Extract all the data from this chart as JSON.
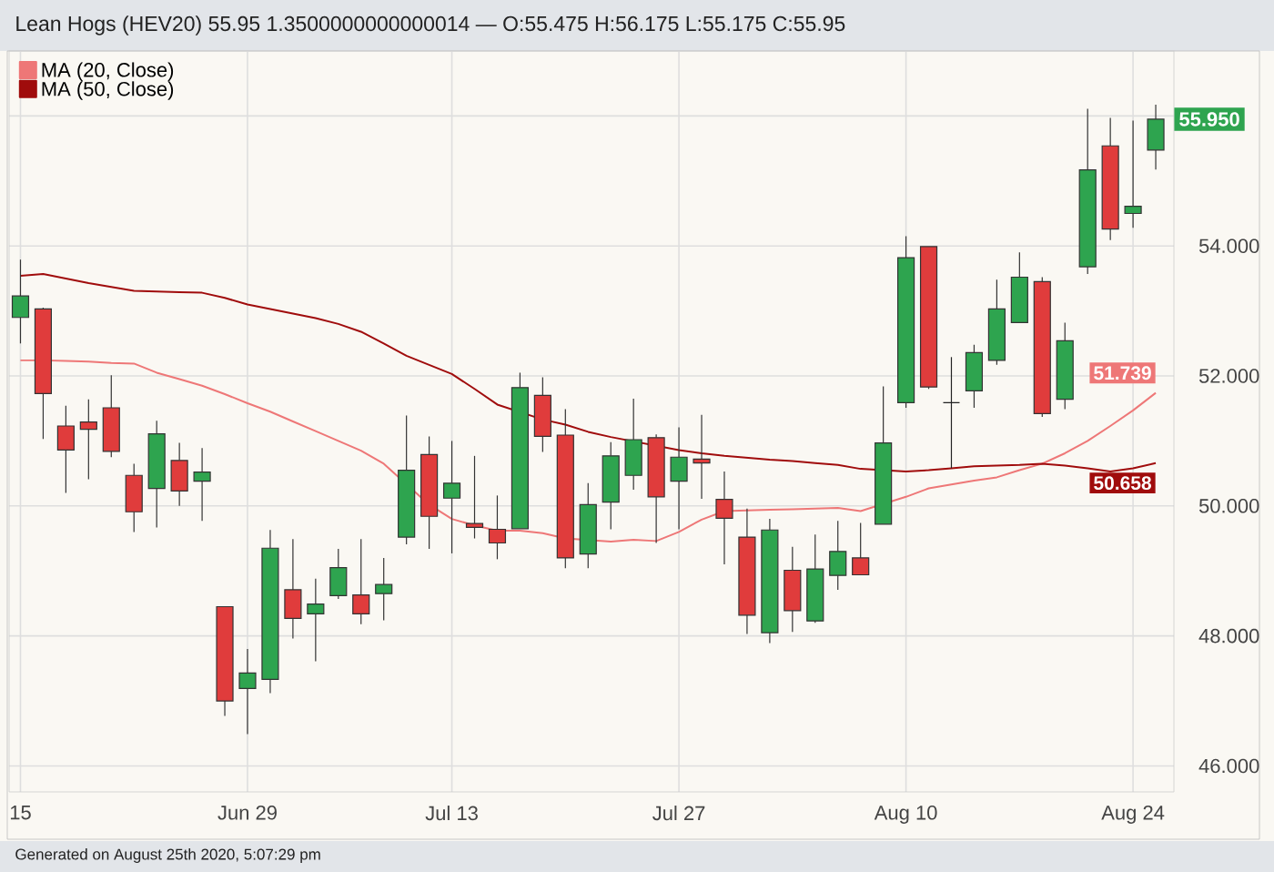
{
  "chart_data": {
    "type": "candlestick",
    "title": "Lean Hogs (HEV20) 55.95 1.3500000000000014 — O:55.475 H:56.175 L:55.175 C:55.95",
    "categories": [
      "15",
      null,
      null,
      null,
      null,
      null,
      null,
      null,
      null,
      null,
      "Jun 29",
      null,
      null,
      null,
      null,
      null,
      null,
      null,
      null,
      "Jul 13",
      null,
      null,
      null,
      null,
      null,
      null,
      null,
      null,
      null,
      "Jul 27",
      null,
      null,
      null,
      null,
      null,
      null,
      null,
      null,
      null,
      "Aug 10",
      null,
      null,
      null,
      null,
      null,
      null,
      null,
      null,
      null,
      "Aug 24",
      null
    ],
    "ohlc": [
      [
        52.9,
        53.79,
        52.5,
        53.23
      ],
      [
        53.03,
        53.05,
        51.03,
        51.73
      ],
      [
        51.23,
        51.54,
        50.2,
        50.86
      ],
      [
        51.29,
        51.64,
        50.41,
        51.18
      ],
      [
        51.51,
        52.01,
        50.75,
        50.84
      ],
      [
        50.47,
        50.65,
        49.6,
        49.91
      ],
      [
        50.27,
        51.31,
        49.67,
        51.11
      ],
      [
        50.7,
        50.97,
        50.0,
        50.23
      ],
      [
        50.38,
        50.89,
        49.77,
        50.52
      ],
      [
        48.45,
        48.45,
        46.77,
        47.0
      ],
      [
        47.19,
        47.8,
        46.49,
        47.43
      ],
      [
        47.33,
        49.63,
        47.12,
        49.35
      ],
      [
        48.71,
        49.49,
        47.96,
        48.27
      ],
      [
        48.34,
        48.88,
        47.61,
        48.49
      ],
      [
        48.62,
        49.34,
        48.57,
        49.05
      ],
      [
        48.63,
        49.49,
        48.18,
        48.34
      ],
      [
        48.65,
        49.2,
        48.24,
        48.79
      ],
      [
        49.52,
        51.39,
        49.41,
        50.55
      ],
      [
        50.79,
        51.07,
        49.34,
        49.84
      ],
      [
        50.12,
        51.0,
        49.27,
        50.35
      ],
      [
        49.73,
        50.77,
        49.5,
        49.67
      ],
      [
        49.64,
        50.16,
        49.18,
        49.43
      ],
      [
        49.65,
        52.05,
        49.65,
        51.82
      ],
      [
        51.7,
        51.98,
        50.83,
        51.07
      ],
      [
        51.09,
        51.49,
        49.04,
        49.2
      ],
      [
        49.26,
        50.35,
        49.04,
        50.02
      ],
      [
        50.06,
        50.98,
        49.64,
        50.77
      ],
      [
        50.47,
        51.65,
        50.25,
        51.02
      ],
      [
        51.05,
        51.1,
        49.43,
        50.14
      ],
      [
        50.38,
        51.21,
        49.64,
        50.75
      ],
      [
        50.72,
        51.4,
        50.11,
        50.66
      ],
      [
        50.1,
        50.53,
        49.1,
        49.81
      ],
      [
        49.52,
        49.96,
        48.03,
        48.32
      ],
      [
        48.05,
        49.8,
        47.89,
        49.63
      ],
      [
        49.01,
        49.37,
        48.06,
        48.39
      ],
      [
        48.23,
        49.56,
        48.2,
        49.03
      ],
      [
        48.93,
        49.77,
        48.71,
        49.3
      ],
      [
        49.2,
        49.74,
        48.94,
        48.94
      ],
      [
        49.72,
        51.84,
        49.72,
        50.97
      ],
      [
        51.59,
        54.15,
        51.51,
        53.82
      ],
      [
        53.99,
        53.99,
        51.8,
        51.83
      ],
      [
        51.59,
        52.29,
        50.58,
        51.59
      ],
      [
        51.77,
        52.48,
        51.51,
        52.36
      ],
      [
        52.24,
        53.48,
        52.17,
        53.03
      ],
      [
        52.82,
        53.9,
        52.82,
        53.52
      ],
      [
        53.45,
        53.52,
        51.37,
        51.42
      ],
      [
        51.64,
        52.82,
        51.49,
        52.54
      ],
      [
        53.68,
        56.11,
        53.57,
        55.17
      ],
      [
        55.54,
        55.97,
        54.09,
        54.26
      ],
      [
        54.5,
        55.93,
        54.28,
        54.61
      ],
      [
        55.475,
        56.175,
        55.175,
        55.95
      ]
    ],
    "colors": [
      "#2ea44f",
      "#e03c3c",
      "#e03c3c",
      "#e03c3c",
      "#e03c3c",
      "#e03c3c",
      "#2ea44f",
      "#e03c3c",
      "#2ea44f",
      "#e03c3c",
      "#2ea44f",
      "#2ea44f",
      "#e03c3c",
      "#2ea44f",
      "#2ea44f",
      "#e03c3c",
      "#2ea44f",
      "#2ea44f",
      "#e03c3c",
      "#2ea44f",
      "#e03c3c",
      "#e03c3c",
      "#2ea44f",
      "#e03c3c",
      "#e03c3c",
      "#2ea44f",
      "#2ea44f",
      "#2ea44f",
      "#e03c3c",
      "#2ea44f",
      "#e03c3c",
      "#e03c3c",
      "#e03c3c",
      "#2ea44f",
      "#e03c3c",
      "#2ea44f",
      "#2ea44f",
      "#e03c3c",
      "#2ea44f",
      "#2ea44f",
      "#e03c3c",
      "#222222",
      "#2ea44f",
      "#2ea44f",
      "#2ea44f",
      "#e03c3c",
      "#2ea44f",
      "#2ea44f",
      "#e03c3c",
      "#2ea44f",
      "#2ea44f"
    ],
    "series": [
      {
        "type": "line",
        "name": "MA (20, Close)",
        "color": "#ee7777",
        "values": [
          52.24,
          52.24,
          52.23,
          52.22,
          52.2,
          52.19,
          52.05,
          51.95,
          51.85,
          51.72,
          51.58,
          51.45,
          51.3,
          51.15,
          51.0,
          50.85,
          50.65,
          null,
          50.02,
          49.8,
          49.7,
          49.62,
          49.62,
          49.58,
          49.5,
          null,
          49.45,
          49.48,
          49.46,
          49.6,
          49.79,
          49.92,
          49.93,
          49.94,
          49.95,
          49.96,
          49.97,
          49.92,
          null,
          50.14,
          50.27,
          50.33,
          50.39,
          50.44,
          50.55,
          50.65,
          50.81,
          51.0,
          51.23,
          51.47,
          51.739
        ],
        "value_labels": [
          null,
          null,
          null,
          null,
          null,
          null,
          null,
          null,
          null,
          null,
          null,
          null,
          null,
          null,
          null,
          null,
          null,
          null,
          null,
          null,
          null,
          null,
          null,
          null,
          null,
          null,
          null,
          null,
          null,
          null,
          null,
          null,
          null,
          null,
          null,
          null,
          null,
          null,
          null,
          null,
          null,
          null,
          null,
          null,
          null,
          null,
          null,
          null,
          null,
          null,
          "51.739"
        ]
      },
      {
        "type": "line",
        "name": "MA (50, Close)",
        "color": "#a00c0c",
        "values": [
          53.54,
          53.57,
          53.5,
          53.43,
          53.37,
          53.31,
          53.3,
          53.29,
          53.28,
          53.2,
          53.1,
          53.03,
          52.96,
          52.89,
          52.8,
          52.68,
          52.5,
          52.31,
          52.17,
          52.03,
          51.8,
          51.56,
          null,
          51.33,
          51.25,
          51.14,
          51.06,
          null,
          null,
          50.86,
          50.81,
          50.77,
          50.74,
          50.71,
          50.69,
          50.66,
          50.63,
          50.57,
          null,
          50.53,
          50.55,
          50.58,
          50.61,
          50.62,
          50.63,
          50.65,
          50.62,
          50.58,
          50.53,
          50.58,
          50.658
        ],
        "value_labels": [
          null,
          null,
          null,
          null,
          null,
          null,
          null,
          null,
          null,
          null,
          null,
          null,
          null,
          null,
          null,
          null,
          null,
          null,
          null,
          null,
          null,
          null,
          null,
          null,
          null,
          null,
          null,
          null,
          null,
          null,
          null,
          null,
          null,
          null,
          null,
          null,
          null,
          null,
          null,
          null,
          null,
          null,
          null,
          null,
          null,
          null,
          null,
          null,
          null,
          null,
          "50.658"
        ]
      }
    ],
    "ylim": [
      45.6,
      57.0
    ],
    "yticks": [
      {
        "value": 46,
        "label": "46.000"
      },
      {
        "value": 48,
        "label": "48.000"
      },
      {
        "value": 50,
        "label": "50.000"
      },
      {
        "value": 52,
        "label": "52.000"
      },
      {
        "value": 54,
        "label": "54.000"
      },
      {
        "value": 56,
        "label": null
      }
    ],
    "grid": true,
    "legend": "top left",
    "marker": "none",
    "annotations": [
      {
        "text": "55.950",
        "y": 55.95
      },
      "Generated on August 25th 2020, 5:07:29 pm"
    ]
  }
}
